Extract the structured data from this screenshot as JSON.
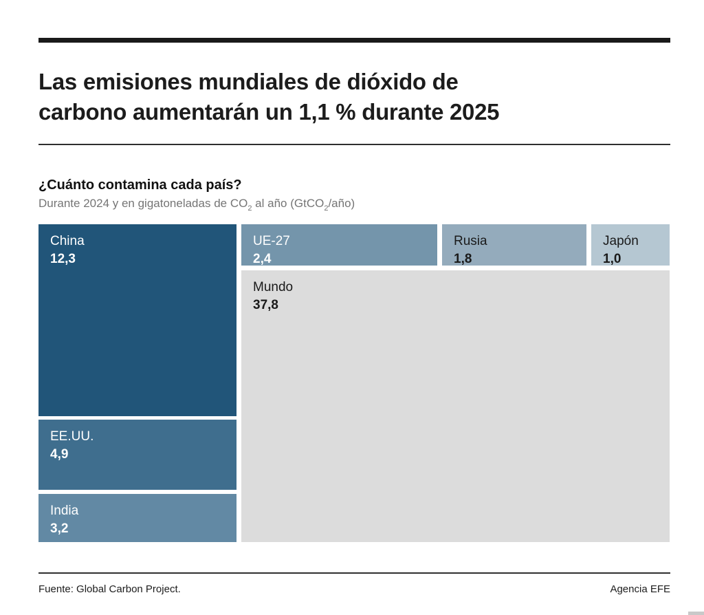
{
  "header": {
    "title_line1": "Las emisiones mundiales de dióxido de",
    "title_line2": "carbono aumentarán un 1,1 % durante 2025"
  },
  "chart_header": {
    "question": "¿Cuánto contamina cada país?",
    "subtitle_parts": {
      "p1": "Durante 2024 y en gigatoneladas de CO",
      "p2": "2",
      "p3": " al año (GtCO",
      "p4": "2",
      "p5": "/año)"
    }
  },
  "chart_data": {
    "type": "treemap",
    "title": "¿Cuánto contamina cada país?",
    "subtitle": "Durante 2024 y en gigatoneladas de CO2 al año (GtCO2/año)",
    "unit": "GtCO2/año",
    "year": "2024",
    "series": [
      {
        "name": "China",
        "value": 12.3,
        "label": "12,3",
        "color": "#215579",
        "text_color": "#ffffff"
      },
      {
        "name": "EE.UU.",
        "value": 4.9,
        "label": "4,9",
        "color": "#3f6e8e",
        "text_color": "#ffffff"
      },
      {
        "name": "India",
        "value": 3.2,
        "label": "3,2",
        "color": "#6289a4",
        "text_color": "#ffffff"
      },
      {
        "name": "UE-27",
        "value": 2.4,
        "label": "2,4",
        "color": "#7495ab",
        "text_color": "#ffffff"
      },
      {
        "name": "Rusia",
        "value": 1.8,
        "label": "1,8",
        "color": "#94abbc",
        "text_color": "#1a1a1a"
      },
      {
        "name": "Japón",
        "value": 1.0,
        "label": "1,0",
        "color": "#b5c7d2",
        "text_color": "#1a1a1a"
      },
      {
        "name": "Mundo",
        "value": 37.8,
        "label": "37,8",
        "color": "#dcdcdc",
        "text_color": "#1a1a1a"
      }
    ]
  },
  "footer": {
    "source": "Fuente: Global Carbon Project.",
    "credit": "Agencia EFE"
  }
}
